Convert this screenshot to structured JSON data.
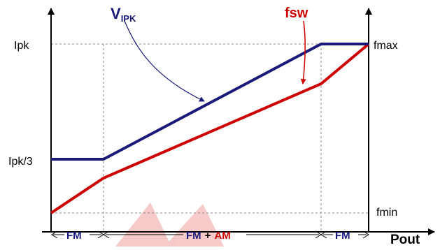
{
  "labels": {
    "ipk": "Ipk",
    "ipk_third": "Ipk/3",
    "fmax": "fmax",
    "fmin": "fmin",
    "pout": "Pout",
    "vipk_main": "V",
    "vipk_sub": "IPK",
    "fsw": "fsw"
  },
  "bands": {
    "fm_left": "FM",
    "fm_am_fm": "FM",
    "fm_am_plus": "+",
    "fm_am_am": "AM",
    "fm_right": "FM"
  },
  "colors": {
    "vipk": "#1a1a7a",
    "fsw": "#cc0000",
    "axis": "#000000",
    "guide": "#888888",
    "band_fm": "#1a1a7a",
    "band_am": "#cc0000",
    "watermark": "#f2a0a0"
  },
  "icons": {
    "x_axis_arrow": "arrow-right-icon",
    "y_axis_left_arrow": "arrow-up-icon",
    "y_axis_right_arrow": "arrow-up-icon"
  }
}
